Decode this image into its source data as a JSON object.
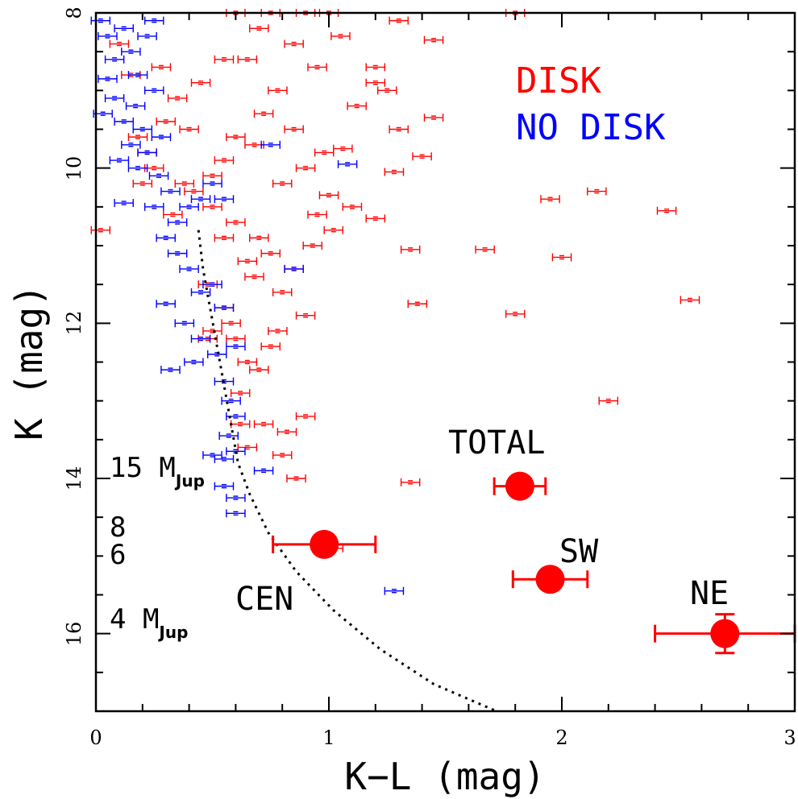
{
  "chart_data": {
    "type": "scatter",
    "xlabel": "K−L (mag)",
    "ylabel": "K (mag)",
    "xlim": [
      0,
      3
    ],
    "ylim": [
      17,
      8
    ],
    "y_inverted": true,
    "x_ticks": [
      "0",
      "1",
      "2",
      "3"
    ],
    "y_ticks": [
      "8",
      "10",
      "12",
      "14",
      "16"
    ],
    "legend": {
      "position": "top-right",
      "entries": [
        {
          "label": "DISK",
          "color": "#ff0000"
        },
        {
          "label": "NO DISK",
          "color": "#0000ff"
        }
      ]
    },
    "series": [
      {
        "name": "DISK",
        "color": "#ff0000",
        "points": [
          [
            0.42,
            10.3
          ],
          [
            0.5,
            10.5
          ],
          [
            0.55,
            10.9
          ],
          [
            0.6,
            10.7
          ],
          [
            0.65,
            11.2
          ],
          [
            0.7,
            10.9
          ],
          [
            0.48,
            11.5
          ],
          [
            0.55,
            11.8
          ],
          [
            0.6,
            12.2
          ],
          [
            0.7,
            12.6
          ],
          [
            0.62,
            12.9
          ],
          [
            0.75,
            12.3
          ],
          [
            0.8,
            11.6
          ],
          [
            0.68,
            11.4
          ],
          [
            0.75,
            11.1
          ],
          [
            0.85,
            11.3
          ],
          [
            0.78,
            12.1
          ],
          [
            0.9,
            11.9
          ],
          [
            0.72,
            13.3
          ],
          [
            0.82,
            13.4
          ],
          [
            0.9,
            13.2
          ],
          [
            0.8,
            13.7
          ],
          [
            0.65,
            13.6
          ],
          [
            0.86,
            14.0
          ],
          [
            0.5,
            10.1
          ],
          [
            0.55,
            9.9
          ],
          [
            0.6,
            9.6
          ],
          [
            0.68,
            9.7
          ],
          [
            0.72,
            9.3
          ],
          [
            0.78,
            9.0
          ],
          [
            0.85,
            9.5
          ],
          [
            0.8,
            10.2
          ],
          [
            0.9,
            10.0
          ],
          [
            0.95,
            10.6
          ],
          [
            1.0,
            10.35
          ],
          [
            1.02,
            10.8
          ],
          [
            1.1,
            10.5
          ],
          [
            1.2,
            10.65
          ],
          [
            0.98,
            9.8
          ],
          [
            1.06,
            9.75
          ],
          [
            1.12,
            9.2
          ],
          [
            1.2,
            8.9
          ],
          [
            1.3,
            9.5
          ],
          [
            1.25,
            9.0
          ],
          [
            1.4,
            9.85
          ],
          [
            1.45,
            9.35
          ],
          [
            1.45,
            8.35
          ],
          [
            1.3,
            8.1
          ],
          [
            1.2,
            8.7
          ],
          [
            1.05,
            8.3
          ],
          [
            0.95,
            8.7
          ],
          [
            0.85,
            8.4
          ],
          [
            0.7,
            8.2
          ],
          [
            0.65,
            8.6
          ],
          [
            0.6,
            8.0
          ],
          [
            0.75,
            8.0
          ],
          [
            0.9,
            8.0
          ],
          [
            1.0,
            8.0
          ],
          [
            0.55,
            8.6
          ],
          [
            0.45,
            8.9
          ],
          [
            0.3,
            9.4
          ],
          [
            0.35,
            9.1
          ],
          [
            0.4,
            9.5
          ],
          [
            0.28,
            8.7
          ],
          [
            0.22,
            9.8
          ],
          [
            0.2,
            10.2
          ],
          [
            0.38,
            10.2
          ],
          [
            0.33,
            10.6
          ],
          [
            0.25,
            10.0
          ],
          [
            1.28,
            10.05
          ],
          [
            1.35,
            11.05
          ],
          [
            1.38,
            11.75
          ],
          [
            1.35,
            14.05
          ],
          [
            1.67,
            11.05
          ],
          [
            1.8,
            11.88
          ],
          [
            1.8,
            8.0
          ],
          [
            1.95,
            10.4
          ],
          [
            2.0,
            11.15
          ],
          [
            2.15,
            10.3
          ],
          [
            2.45,
            10.55
          ],
          [
            2.55,
            11.7
          ],
          [
            2.2,
            13.0
          ],
          [
            0.02,
            10.8
          ],
          [
            0.15,
            8.8
          ],
          [
            0.18,
            9.6
          ],
          [
            0.5,
            12.1
          ],
          [
            0.58,
            12.0
          ],
          [
            0.65,
            12.5
          ],
          [
            0.48,
            12.2
          ],
          [
            0.62,
            13.3
          ],
          [
            1.02,
            14.9
          ],
          [
            0.93,
            11.0
          ],
          [
            0.1,
            8.4
          ]
        ],
        "xerr": 0.04
      },
      {
        "name": "NO DISK",
        "color": "#0000ff",
        "points": [
          [
            0.02,
            8.1
          ],
          [
            0.05,
            8.3
          ],
          [
            0.08,
            8.6
          ],
          [
            0.12,
            8.2
          ],
          [
            0.15,
            8.5
          ],
          [
            0.18,
            8.8
          ],
          [
            0.22,
            8.3
          ],
          [
            0.25,
            8.1
          ],
          [
            0.03,
            9.3
          ],
          [
            0.08,
            9.1
          ],
          [
            0.12,
            9.4
          ],
          [
            0.17,
            9.2
          ],
          [
            0.2,
            9.5
          ],
          [
            0.15,
            9.7
          ],
          [
            0.25,
            9.0
          ],
          [
            0.28,
            9.6
          ],
          [
            0.1,
            9.9
          ],
          [
            0.18,
            10.0
          ],
          [
            0.22,
            9.8
          ],
          [
            0.27,
            10.1
          ],
          [
            0.32,
            10.3
          ],
          [
            0.25,
            10.5
          ],
          [
            0.35,
            10.7
          ],
          [
            0.4,
            10.5
          ],
          [
            0.45,
            10.4
          ],
          [
            0.5,
            10.2
          ],
          [
            0.55,
            10.4
          ],
          [
            0.3,
            10.9
          ],
          [
            0.35,
            11.1
          ],
          [
            0.4,
            11.3
          ],
          [
            0.45,
            11.6
          ],
          [
            0.5,
            11.5
          ],
          [
            0.55,
            11.8
          ],
          [
            0.38,
            12.0
          ],
          [
            0.45,
            12.2
          ],
          [
            0.52,
            12.4
          ],
          [
            0.6,
            12.3
          ],
          [
            0.32,
            12.6
          ],
          [
            0.42,
            12.5
          ],
          [
            0.55,
            12.75
          ],
          [
            0.58,
            13.0
          ],
          [
            0.6,
            13.2
          ],
          [
            0.57,
            13.45
          ],
          [
            0.5,
            13.7
          ],
          [
            0.55,
            13.75
          ],
          [
            0.6,
            13.65
          ],
          [
            0.72,
            13.9
          ],
          [
            0.55,
            14.1
          ],
          [
            0.6,
            14.25
          ],
          [
            0.6,
            14.45
          ],
          [
            1.28,
            15.45
          ],
          [
            0.85,
            11.3
          ],
          [
            1.08,
            9.95
          ],
          [
            0.75,
            9.7
          ],
          [
            0.12,
            10.45
          ],
          [
            0.3,
            11.75
          ],
          [
            0.05,
            8.85
          ]
        ],
        "xerr": 0.04
      },
      {
        "name": "",
        "color": "#ff0000",
        "points": [
          {
            "label": "TOTAL",
            "x": 1.82,
            "y": 14.1,
            "xerr": 0.11
          },
          {
            "label": "CEN",
            "x": 0.98,
            "y": 14.85,
            "xerr": 0.22
          },
          {
            "label": "SW",
            "x": 1.95,
            "y": 15.3,
            "xerr": 0.16
          },
          {
            "label": "NE",
            "x": 2.7,
            "y": 16.0,
            "xerr": 0.3,
            "yerr": 0.25
          }
        ]
      }
    ],
    "isochrone": [
      [
        0.44,
        10.8
      ],
      [
        0.46,
        11.3
      ],
      [
        0.49,
        11.8
      ],
      [
        0.52,
        12.3
      ],
      [
        0.55,
        12.8
      ],
      [
        0.58,
        13.3
      ],
      [
        0.61,
        13.8
      ],
      [
        0.66,
        14.2
      ],
      [
        0.74,
        14.7
      ],
      [
        0.86,
        15.2
      ],
      [
        1.02,
        15.7
      ],
      [
        1.22,
        16.2
      ],
      [
        1.45,
        16.65
      ],
      [
        1.72,
        17.0
      ]
    ],
    "mass_labels": [
      {
        "text": "15 M",
        "sub": "Jup",
        "y": 13.95
      },
      {
        "text": "8",
        "y": 14.7
      },
      {
        "text": "6",
        "y": 15.05
      },
      {
        "text": "4 M",
        "sub": "Jup",
        "y": 15.85
      }
    ]
  }
}
